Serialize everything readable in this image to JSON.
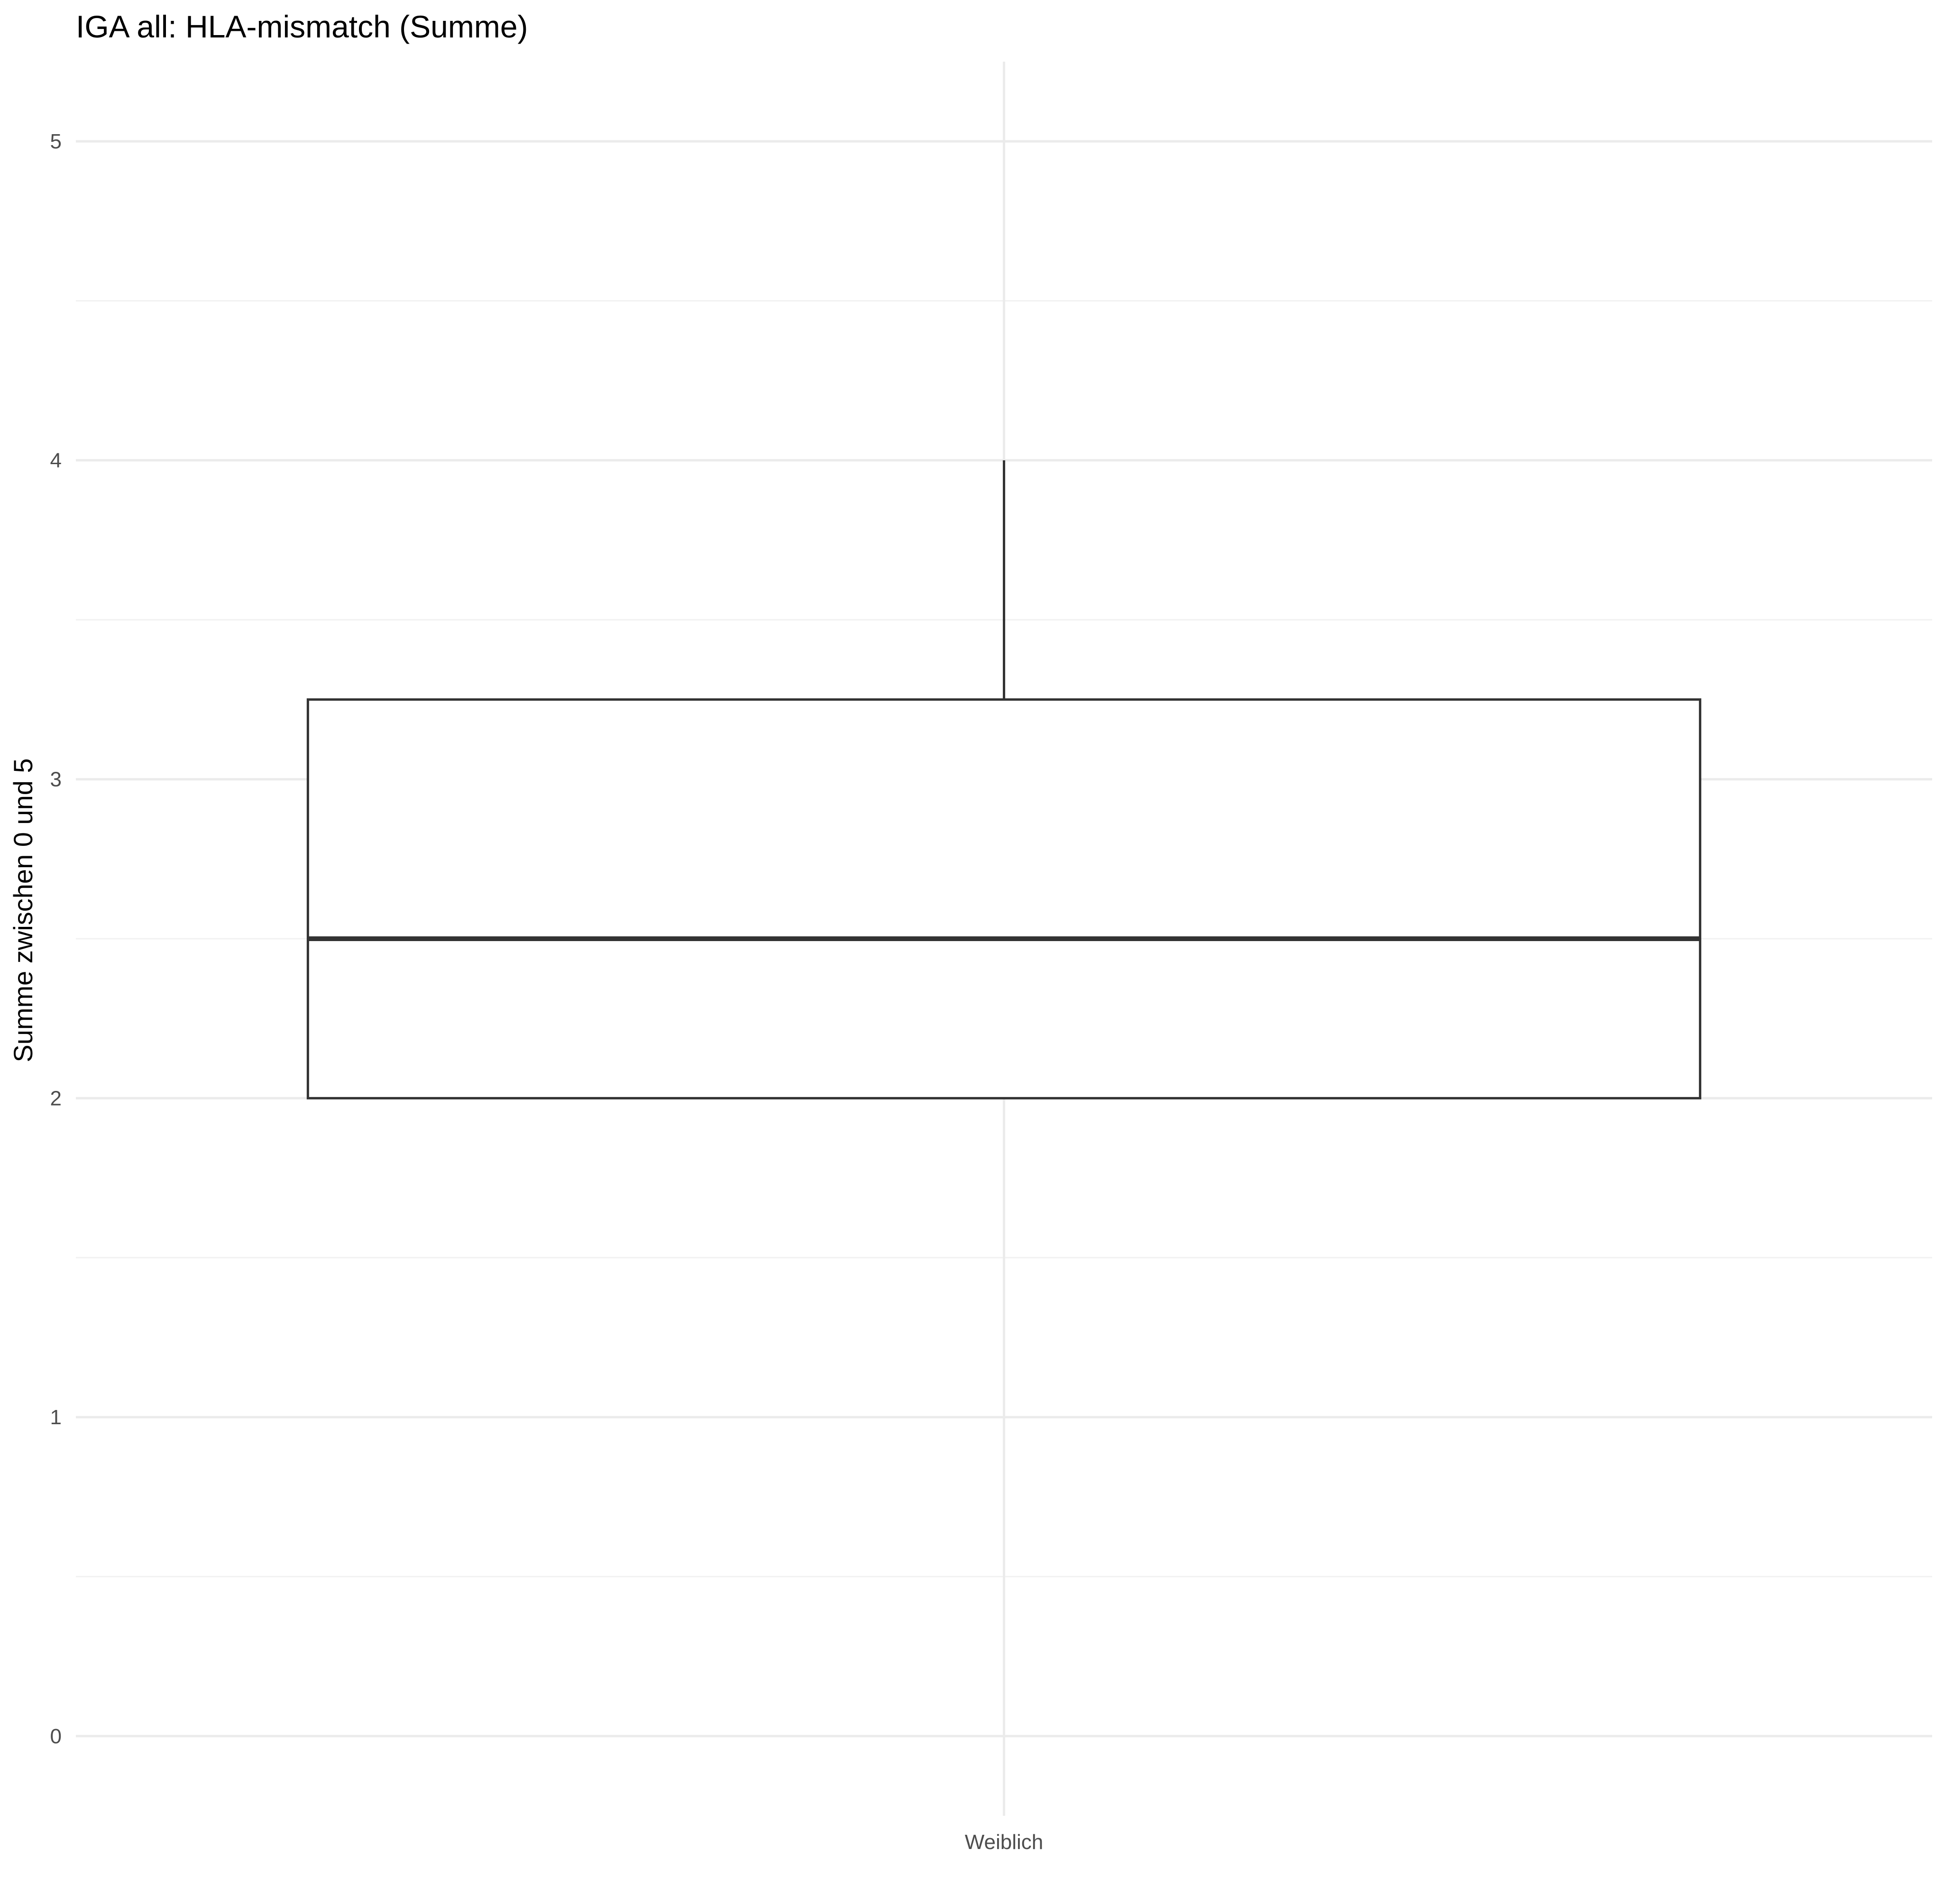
{
  "chart_data": {
    "type": "box",
    "title": "IGA all: HLA-mismatch (Summe)",
    "xlabel": "",
    "ylabel": "Summe zwischen 0 und 5",
    "categories": [
      "Weiblich"
    ],
    "ylim": [
      -0.25,
      5.25
    ],
    "y_ticks": [
      0,
      1,
      2,
      3,
      4,
      5
    ],
    "y_tick_labels": [
      "0",
      "1",
      "2",
      "3",
      "4",
      "5"
    ],
    "grid": true,
    "series": [
      {
        "category": "Weiblich",
        "min": 2,
        "q1": 2,
        "median": 2.5,
        "q3": 3.25,
        "max": 4
      }
    ],
    "colors": {
      "box_stroke": "#333333",
      "box_fill": "#ffffff",
      "grid_major": "#ebebeb",
      "grid_minor": "#f2f2f2",
      "tick_text": "#4d4d4d"
    }
  }
}
